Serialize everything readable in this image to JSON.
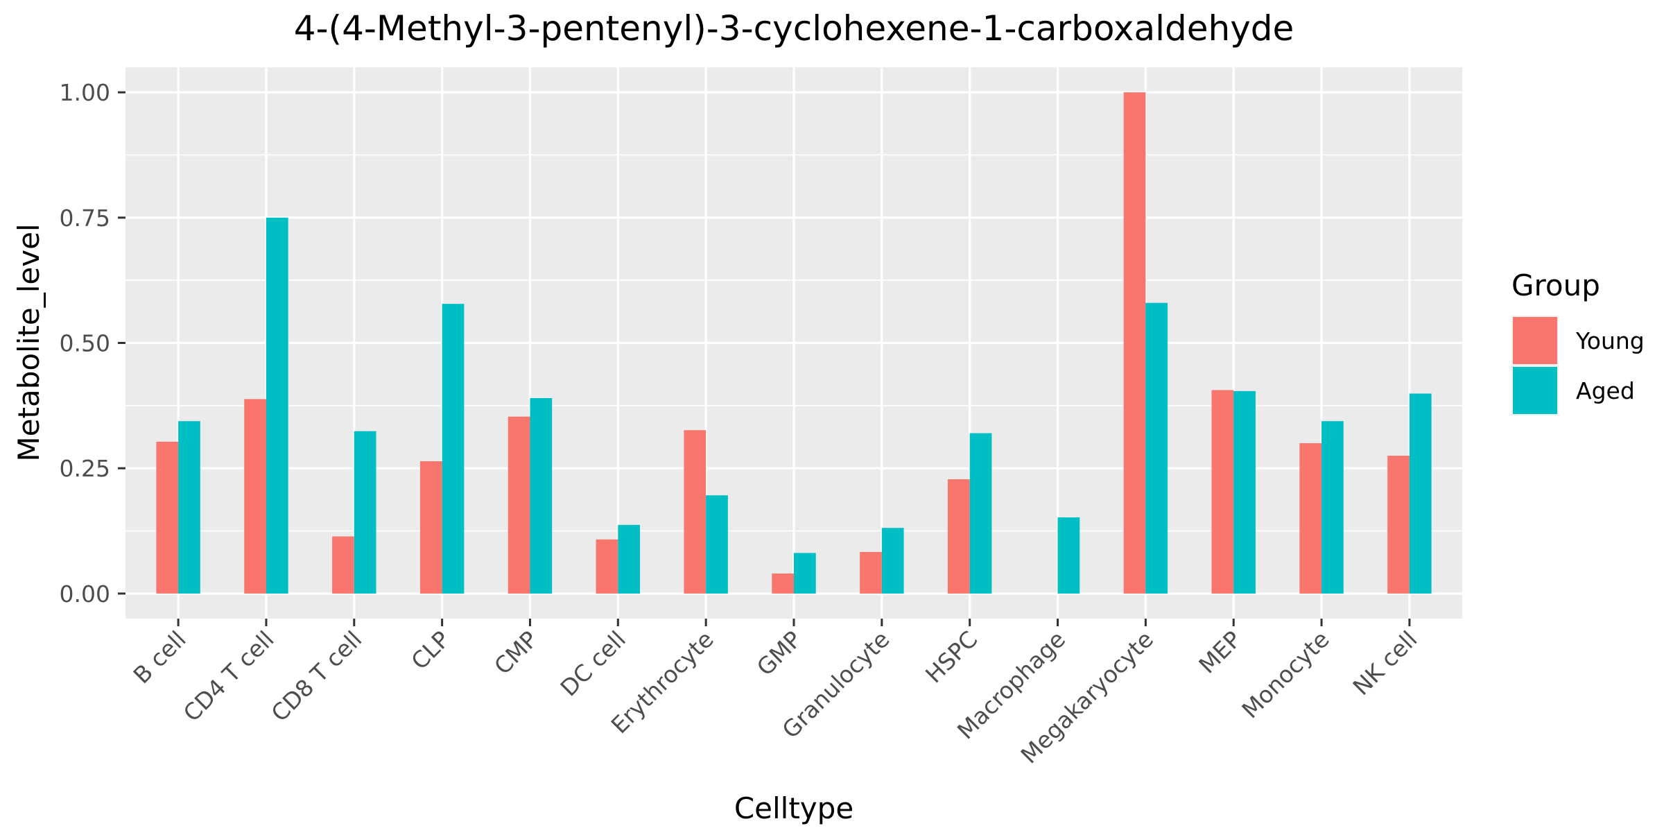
{
  "chart_data": {
    "type": "bar",
    "title": "4-(4-Methyl-3-pentenyl)-3-cyclohexene-1-carboxaldehyde",
    "xlabel": "Celltype",
    "ylabel": "Metabolite_level",
    "ylim": [
      -0.05,
      1.05
    ],
    "yticks": [
      0.0,
      0.25,
      0.5,
      0.75,
      1.0
    ],
    "ytick_labels": [
      "0.00",
      "0.25",
      "0.50",
      "0.75",
      "1.00"
    ],
    "grid": true,
    "legend": {
      "title": "Group",
      "position": "right"
    },
    "categories": [
      "B cell",
      "CD4 T cell",
      "CD8 T cell",
      "CLP",
      "CMP",
      "DC cell",
      "Erythrocyte",
      "GMP",
      "Granulocyte",
      "HSPC",
      "Macrophage",
      "Megakaryocyte",
      "MEP",
      "Monocyte",
      "NK cell"
    ],
    "series": [
      {
        "name": "Young",
        "color": "#F8766D",
        "values": [
          0.303,
          0.388,
          0.114,
          0.264,
          0.353,
          0.108,
          0.326,
          0.04,
          0.083,
          0.228,
          0.0,
          1.0,
          0.406,
          0.3,
          0.275
        ]
      },
      {
        "name": "Aged",
        "color": "#00BFC4",
        "values": [
          0.344,
          0.75,
          0.324,
          0.578,
          0.39,
          0.137,
          0.196,
          0.081,
          0.131,
          0.32,
          0.152,
          0.58,
          0.404,
          0.344,
          0.399
        ]
      }
    ]
  }
}
